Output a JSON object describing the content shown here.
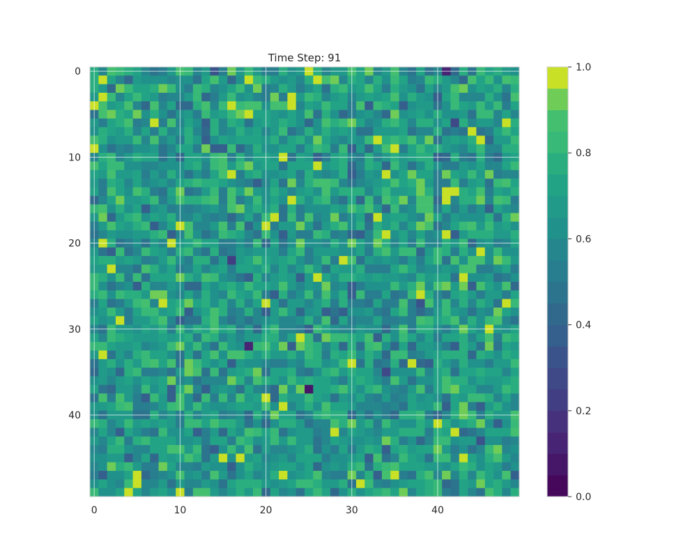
{
  "chart_data": {
    "type": "heatmap",
    "title": "Time Step: 91",
    "xlabel": "",
    "ylabel": "",
    "rows": 50,
    "cols": 50,
    "x_ticks": [
      "0",
      "10",
      "20",
      "30",
      "40"
    ],
    "y_ticks": [
      "0",
      "10",
      "20",
      "30",
      "40"
    ],
    "colorbar": {
      "range": [
        0.0,
        1.0
      ],
      "levels": 20,
      "ticks": [
        "0.0",
        "0.2",
        "0.4",
        "0.6",
        "0.8",
        "1.0"
      ]
    },
    "colormap": "viridis",
    "grid": true,
    "value_stats": {
      "mean": 0.68,
      "std": 0.14,
      "min": 0.02,
      "max": 1.0
    },
    "low_value_cells": [
      {
        "row": 0,
        "col": 41,
        "value": 0.12
      },
      {
        "row": 0,
        "col": 14,
        "value": 0.3
      },
      {
        "row": 32,
        "col": 18,
        "value": 0.1
      },
      {
        "row": 37,
        "col": 25,
        "value": 0.05
      },
      {
        "row": 22,
        "col": 16,
        "value": 0.22
      },
      {
        "row": 35,
        "col": 34,
        "value": 0.25
      },
      {
        "row": 6,
        "col": 42,
        "value": 0.28
      },
      {
        "row": 27,
        "col": 38,
        "value": 0.3
      },
      {
        "row": 43,
        "col": 45,
        "value": 0.3
      }
    ]
  }
}
